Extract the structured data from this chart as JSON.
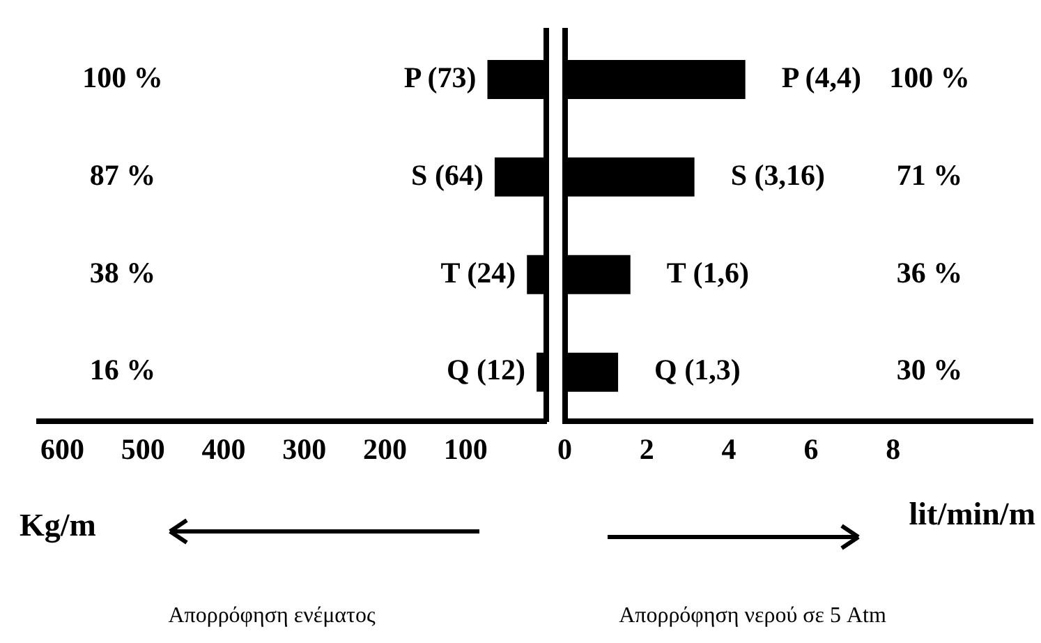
{
  "chart_data": [
    {
      "type": "bar",
      "orientation": "horizontal",
      "categories": [
        null,
        null,
        null,
        null
      ],
      "series": [
        {
          "color": "#000000",
          "values": [
            73,
            64,
            24,
            12
          ],
          "value_labels": [
            "P (73)",
            "S (64)",
            "T (24)",
            "Q (12)"
          ]
        }
      ],
      "xlim": [
        629,
        0
      ],
      "xticks": [
        100,
        200,
        300,
        400,
        500,
        600
      ],
      "xlabel": "Kg/m",
      "grid": false,
      "legend": false,
      "annotations": [
        "100 %",
        "87 %",
        "38 %",
        "16 %",
        "Απορρόφηση ενέματος"
      ]
    },
    {
      "type": "bar",
      "orientation": "horizontal",
      "categories": [
        null,
        null,
        null,
        null
      ],
      "series": [
        {
          "color": "#000000",
          "values": [
            4.4,
            3.16,
            1.6,
            1.3
          ],
          "value_labels": [
            "P (4,4)",
            "S (3,16)",
            "T (1,6)",
            "Q (1,3)"
          ]
        }
      ],
      "xlim": [
        0,
        11.4
      ],
      "xticks": [
        0,
        2,
        4,
        6,
        8
      ],
      "xlabel": "lit/min/m",
      "grid": false,
      "legend": false,
      "annotations": [
        "100 %",
        "71 %",
        "36 %",
        "30 %",
        "Απορρόφηση νερού σε 5 Atm"
      ]
    }
  ]
}
